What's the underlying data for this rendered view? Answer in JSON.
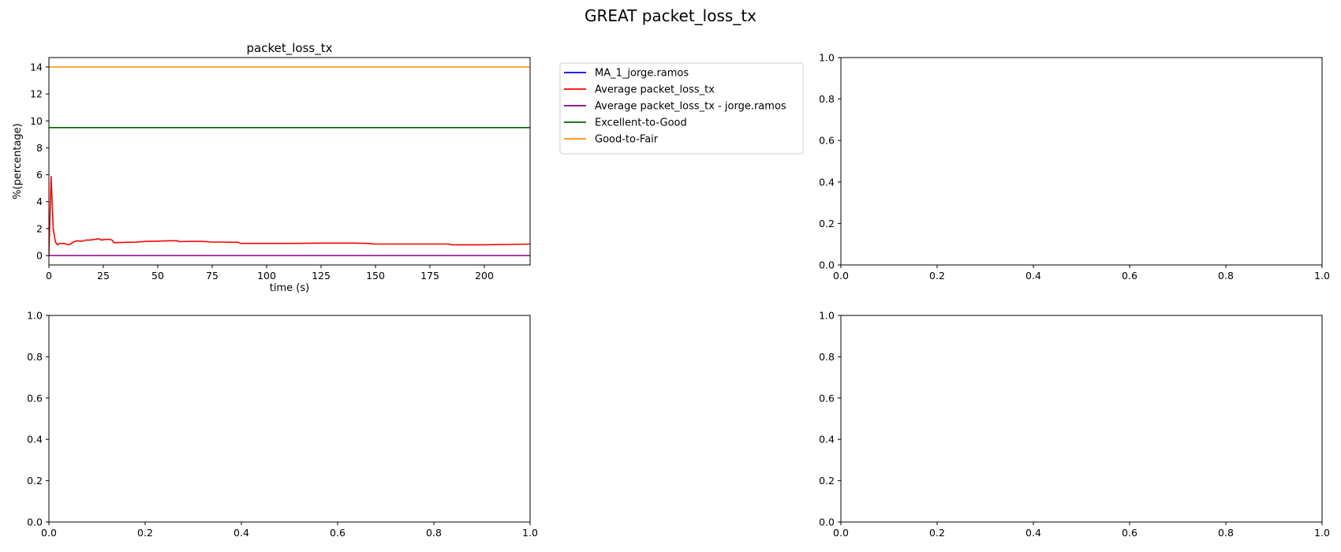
{
  "figure_title": "GREAT packet_loss_tx",
  "colors": {
    "ma1": "#0000ff",
    "average": "#ff0000",
    "average_user": "#800080",
    "excellent_to_good": "#006400",
    "good_to_fair": "#ff8c00"
  },
  "chart_data": [
    {
      "type": "line",
      "panel": "top-left",
      "title": "packet_loss_tx",
      "xlabel": "time (s)",
      "ylabel": "%(percentage)",
      "xlim": [
        0,
        221
      ],
      "ylim": [
        -0.7,
        14.7
      ],
      "xticks": [
        0,
        25,
        50,
        75,
        100,
        125,
        150,
        175,
        200
      ],
      "yticks": [
        0,
        2,
        4,
        6,
        8,
        10,
        12,
        14
      ],
      "grid": false,
      "legend_position": "outside-right",
      "series": [
        {
          "name": "MA_1_jorge.ramos",
          "color_key": "ma1",
          "x": [],
          "y": []
        },
        {
          "name": "Average packet_loss_tx",
          "color_key": "average",
          "x": [
            0,
            1,
            2,
            3,
            4,
            5,
            7,
            9,
            10,
            11,
            13,
            15,
            17,
            19,
            21,
            23,
            24,
            26,
            28,
            29,
            30,
            35,
            40,
            45,
            50,
            55,
            59,
            60,
            65,
            70,
            75,
            80,
            87,
            88,
            95,
            100,
            110,
            125,
            140,
            147,
            150,
            160,
            184,
            185,
            200,
            210,
            221
          ],
          "y": [
            0.0,
            5.9,
            2.0,
            1.0,
            0.8,
            0.9,
            0.9,
            0.8,
            0.85,
            1.0,
            1.1,
            1.05,
            1.15,
            1.15,
            1.2,
            1.25,
            1.15,
            1.2,
            1.2,
            1.15,
            0.95,
            0.98,
            1.0,
            1.05,
            1.07,
            1.1,
            1.1,
            1.03,
            1.05,
            1.05,
            1.0,
            1.0,
            0.98,
            0.9,
            0.9,
            0.9,
            0.9,
            0.92,
            0.92,
            0.9,
            0.85,
            0.85,
            0.85,
            0.8,
            0.8,
            0.82,
            0.85
          ]
        },
        {
          "name": "Average packet_loss_tx - jorge.ramos",
          "color_key": "average_user",
          "x": [
            0,
            221
          ],
          "y": [
            0,
            0
          ]
        },
        {
          "name": "Excellent-to-Good",
          "color_key": "excellent_to_good",
          "x": [
            0,
            221
          ],
          "y": [
            9.5,
            9.5
          ]
        },
        {
          "name": "Good-to-Fair",
          "color_key": "good_to_fair",
          "x": [
            0,
            221
          ],
          "y": [
            14,
            14
          ]
        }
      ]
    },
    {
      "type": "line",
      "panel": "top-right",
      "xlim": [
        0,
        1
      ],
      "ylim": [
        0,
        1
      ],
      "xticks": [
        "0.0",
        "0.2",
        "0.4",
        "0.6",
        "0.8",
        "1.0"
      ],
      "yticks": [
        "0.0",
        "0.2",
        "0.4",
        "0.6",
        "0.8",
        "1.0"
      ],
      "series": []
    },
    {
      "type": "line",
      "panel": "bottom-left",
      "xlim": [
        0,
        1
      ],
      "ylim": [
        0,
        1
      ],
      "xticks": [
        "0.0",
        "0.2",
        "0.4",
        "0.6",
        "0.8",
        "1.0"
      ],
      "yticks": [
        "0.0",
        "0.2",
        "0.4",
        "0.6",
        "0.8",
        "1.0"
      ],
      "series": []
    },
    {
      "type": "line",
      "panel": "bottom-right",
      "xlim": [
        0,
        1
      ],
      "ylim": [
        0,
        1
      ],
      "xticks": [
        "0.0",
        "0.2",
        "0.4",
        "0.6",
        "0.8",
        "1.0"
      ],
      "yticks": [
        "0.0",
        "0.2",
        "0.4",
        "0.6",
        "0.8",
        "1.0"
      ],
      "series": []
    }
  ]
}
